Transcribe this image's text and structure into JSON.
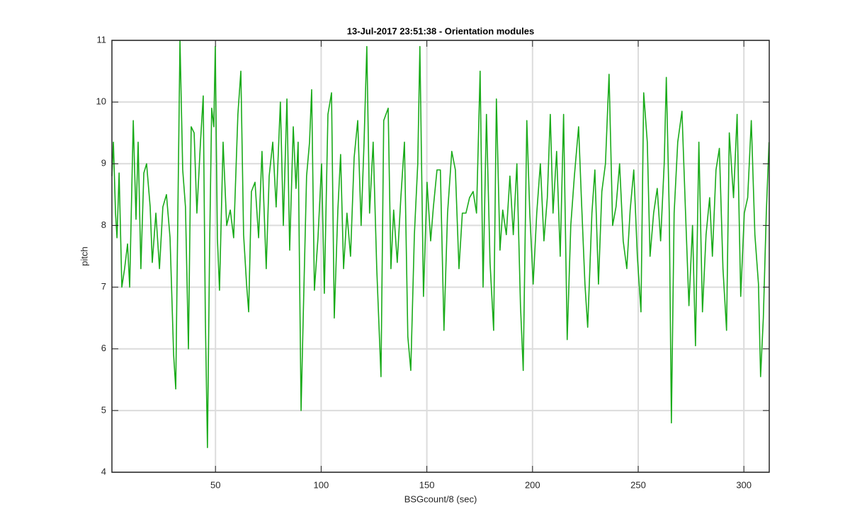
{
  "chart_data": {
    "type": "line",
    "title": "13-Jul-2017 23:51:38 - Orientation modules",
    "x_label": "BSGcount/8 (sec)",
    "y_label": "pitch",
    "color": "#1aab1a",
    "grid": true,
    "xlim": [
      1,
      312
    ],
    "ylim": [
      4,
      11
    ],
    "xticks": [
      50,
      100,
      150,
      200,
      250,
      300
    ],
    "yticks": [
      4,
      5,
      6,
      7,
      8,
      9,
      10,
      11
    ],
    "x": [
      1.0,
      1.7,
      2.7,
      3.4,
      4.4,
      5.7,
      7.0,
      8.4,
      9.4,
      11.1,
      12.4,
      13.4,
      14.7,
      16.1,
      17.4,
      19.1,
      20.1,
      21.8,
      23.5,
      25.1,
      26.8,
      28.5,
      30.2,
      31.2,
      32.2,
      33.2,
      34.5,
      35.8,
      37.2,
      38.5,
      39.9,
      41.2,
      42.9,
      44.2,
      45.2,
      46.2,
      47.2,
      48.2,
      49.2,
      49.9,
      50.9,
      51.9,
      53.6,
      55.3,
      57.0,
      58.6,
      60.6,
      62.0,
      63.3,
      64.7,
      65.7,
      67.0,
      68.7,
      70.4,
      72.0,
      74.0,
      75.4,
      77.1,
      78.7,
      80.7,
      82.1,
      83.8,
      85.1,
      86.8,
      88.1,
      89.1,
      90.5,
      91.5,
      93.1,
      94.5,
      95.5,
      96.8,
      98.5,
      100.2,
      101.5,
      103.2,
      104.9,
      106.2,
      107.9,
      109.2,
      110.6,
      112.2,
      113.9,
      115.6,
      117.3,
      118.9,
      120.3,
      121.6,
      122.9,
      124.6,
      126.3,
      128.3,
      129.6,
      131.7,
      133.0,
      134.3,
      136.0,
      137.7,
      139.4,
      141.0,
      142.4,
      144.1,
      145.7,
      146.7,
      148.4,
      150.1,
      151.8,
      153.1,
      154.8,
      156.4,
      158.1,
      159.8,
      161.8,
      163.5,
      165.2,
      166.8,
      168.5,
      170.2,
      171.9,
      173.5,
      175.2,
      176.6,
      178.2,
      179.9,
      181.6,
      182.9,
      184.6,
      185.9,
      187.6,
      189.3,
      190.9,
      192.6,
      194.3,
      195.6,
      197.3,
      198.7,
      200.3,
      202.0,
      203.7,
      205.4,
      207.0,
      208.4,
      209.7,
      211.4,
      213.1,
      214.7,
      216.4,
      218.1,
      219.8,
      221.8,
      223.1,
      224.8,
      226.1,
      228.1,
      229.5,
      231.2,
      232.8,
      234.5,
      236.2,
      237.9,
      239.5,
      241.2,
      242.9,
      244.6,
      246.2,
      247.9,
      249.6,
      251.3,
      252.6,
      254.3,
      255.6,
      257.3,
      259.0,
      260.6,
      262.3,
      263.3,
      264.7,
      265.7,
      267.0,
      268.7,
      270.7,
      272.4,
      274.0,
      275.7,
      277.1,
      278.7,
      280.4,
      282.1,
      283.8,
      285.1,
      286.8,
      288.4,
      290.1,
      291.8,
      293.1,
      295.1,
      296.8,
      298.5,
      300.2,
      301.8,
      303.5,
      305.2,
      306.9,
      307.9,
      309.2,
      310.6,
      311.9
    ],
    "values": [
      8.8,
      9.35,
      8.2,
      7.8,
      8.85,
      7.0,
      7.3,
      7.7,
      7.0,
      9.7,
      8.1,
      9.35,
      7.3,
      8.85,
      9.0,
      8.3,
      7.4,
      8.2,
      7.3,
      8.3,
      8.5,
      7.8,
      5.9,
      5.35,
      8.2,
      11.0,
      8.9,
      8.3,
      6.0,
      9.6,
      9.5,
      8.2,
      9.35,
      10.1,
      6.5,
      4.4,
      7.6,
      9.9,
      9.6,
      10.9,
      7.8,
      6.95,
      9.35,
      8.0,
      8.25,
      7.8,
      9.8,
      10.5,
      7.85,
      7.05,
      6.6,
      8.55,
      8.7,
      7.8,
      9.2,
      7.3,
      8.8,
      9.35,
      8.3,
      10.0,
      8.0,
      10.05,
      7.6,
      9.6,
      8.6,
      9.35,
      5.0,
      6.5,
      8.8,
      9.35,
      10.2,
      6.95,
      7.8,
      9.0,
      6.9,
      9.8,
      10.15,
      6.5,
      8.25,
      9.15,
      7.3,
      8.2,
      7.5,
      9.1,
      9.7,
      8.0,
      9.35,
      10.9,
      8.2,
      9.35,
      7.3,
      5.55,
      9.7,
      9.9,
      7.3,
      8.25,
      7.4,
      8.45,
      9.35,
      6.2,
      5.65,
      7.85,
      9.0,
      10.9,
      6.85,
      8.7,
      7.75,
      8.3,
      8.9,
      8.9,
      6.3,
      8.2,
      9.2,
      8.9,
      7.3,
      8.2,
      8.2,
      8.45,
      8.55,
      8.2,
      10.5,
      7.0,
      9.8,
      7.4,
      6.3,
      10.05,
      7.6,
      8.25,
      7.85,
      8.8,
      7.85,
      9.0,
      6.7,
      5.65,
      9.7,
      8.2,
      7.05,
      8.2,
      9.0,
      7.75,
      8.45,
      9.8,
      8.2,
      9.2,
      7.5,
      9.8,
      6.15,
      8.0,
      8.8,
      9.6,
      8.45,
      7.05,
      6.35,
      8.2,
      8.9,
      7.05,
      8.55,
      9.0,
      10.45,
      8.0,
      8.3,
      9.0,
      7.75,
      7.3,
      8.25,
      8.9,
      7.5,
      6.6,
      10.15,
      9.35,
      7.5,
      8.2,
      8.6,
      7.75,
      9.0,
      10.4,
      8.2,
      4.8,
      8.2,
      9.35,
      9.85,
      8.2,
      6.7,
      8.0,
      6.05,
      9.35,
      6.6,
      7.85,
      8.45,
      7.5,
      8.9,
      9.25,
      7.3,
      6.3,
      9.5,
      8.45,
      9.8,
      6.85,
      8.2,
      8.45,
      9.7,
      7.85,
      7.05,
      5.55,
      6.5,
      8.2,
      9.35
    ]
  }
}
